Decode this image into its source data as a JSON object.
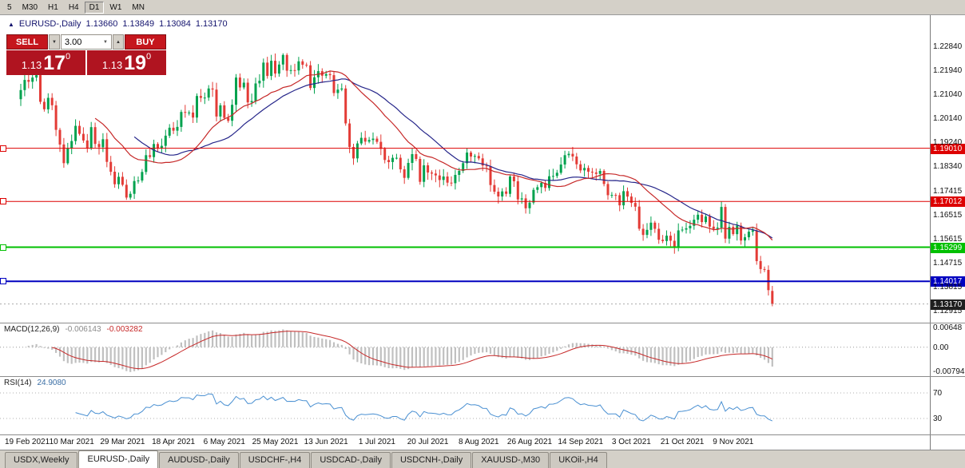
{
  "toolbar": {
    "timeframes": [
      {
        "label": "5",
        "active": false
      },
      {
        "label": "M30",
        "active": false
      },
      {
        "label": "H1",
        "active": false
      },
      {
        "label": "H4",
        "active": false
      },
      {
        "label": "D1",
        "active": true
      },
      {
        "label": "W1",
        "active": false
      },
      {
        "label": "MN",
        "active": false
      }
    ]
  },
  "icons": {
    "arrow_up": "▲",
    "dropdown": "▼",
    "spinner_up": "▲",
    "spinner_down": "▼"
  },
  "title": {
    "symbol": "EURUSD-,Daily",
    "open": "1.13660",
    "high": "1.13849",
    "low": "1.13084",
    "close": "1.13170"
  },
  "trade": {
    "sell_label": "SELL",
    "buy_label": "BUY",
    "volume": "3.00",
    "sell_price": {
      "big": "1.13",
      "pips": "17",
      "pt": "0"
    },
    "buy_price": {
      "big": "1.13",
      "pips": "19",
      "pt": "0"
    }
  },
  "price_axis": [
    "1.22840",
    "1.21940",
    "1.21040",
    "1.20140",
    "1.19240",
    "1.18340",
    "1.17415",
    "1.16515",
    "1.15615",
    "1.14715",
    "1.13815",
    "1.12915"
  ],
  "levels": [
    {
      "label": "1.19010",
      "value": 1.1901,
      "color": "#dd0000",
      "width": 1
    },
    {
      "label": "1.17012",
      "value": 1.17012,
      "color": "#dd0000",
      "width": 1
    },
    {
      "label": "1.15299",
      "value": 1.15299,
      "color": "#00c000",
      "width": 2
    },
    {
      "label": "1.14017",
      "value": 1.14017,
      "color": "#0000c0",
      "width": 2
    }
  ],
  "current_price": {
    "label": "1.13170",
    "value": 1.1317,
    "bg": "#1f1f1f"
  },
  "macd": {
    "name": "MACD(12,26,9)",
    "main_value": "-0.006143",
    "signal_value": "-0.003282",
    "axis_labels": [
      {
        "label": "0.00648",
        "value": 0.00648
      },
      {
        "label": "0.00",
        "value": 0
      },
      {
        "label": "-0.00794",
        "value": -0.00794
      }
    ]
  },
  "rsi": {
    "name": "RSI(14)",
    "value": "24.9080",
    "levels": [
      {
        "label": "70",
        "value": 70
      },
      {
        "label": "30",
        "value": 30
      }
    ]
  },
  "dates": [
    "19 Feb 2021",
    "10 Mar 2021",
    "29 Mar 2021",
    "18 Apr 2021",
    "6 May 2021",
    "25 May 2021",
    "13 Jun 2021",
    "1 Jul 2021",
    "20 Jul 2021",
    "8 Aug 2021",
    "26 Aug 2021",
    "14 Sep 2021",
    "3 Oct 2021",
    "21 Oct 2021",
    "9 Nov 2021"
  ],
  "tabs": [
    {
      "label": "USDX,Weekly",
      "active": false
    },
    {
      "label": "EURUSD-,Daily",
      "active": true
    },
    {
      "label": "AUDUSD-,Daily",
      "active": false
    },
    {
      "label": "USDCHF-,H4",
      "active": false
    },
    {
      "label": "USDCAD-,Daily",
      "active": false
    },
    {
      "label": "USDCNH-,Daily",
      "active": false
    },
    {
      "label": "XAUUSD-,M30",
      "active": false
    },
    {
      "label": "UKOil-,H4",
      "active": false
    }
  ],
  "colors": {
    "candle_up": "#00a24e",
    "candle_down": "#e33b36",
    "ma_fast": "#c62828",
    "ma_slow": "#26268a",
    "macd_hist": "#c0c0c0",
    "macd_signal": "#c62828",
    "rsi_line": "#4a90d2",
    "trade_button": "#c5161d",
    "trade_price_bg": "#b01420"
  },
  "chart_data": {
    "type": "candlestick",
    "symbol": "EURUSD-",
    "timeframe": "Daily",
    "y_range": [
      1.1247,
      1.24
    ],
    "first_open": 1.2085,
    "last_candle": {
      "open": 1.1366,
      "high": 1.13849,
      "low": 1.13084,
      "close": 1.1317
    },
    "ma_fast_period": 20,
    "ma_slow_period": 30,
    "macd_params": [
      12,
      26,
      9
    ],
    "rsi_period": 14,
    "closes": [
      1.2119,
      1.2157,
      1.215,
      1.2166,
      1.2175,
      1.2075,
      1.2047,
      1.209,
      1.2062,
      1.197,
      1.1915,
      1.1845,
      1.19,
      1.1928,
      1.1985,
      1.1955,
      1.193,
      1.1901,
      1.198,
      1.1917,
      1.1905,
      1.1935,
      1.185,
      1.1813,
      1.1766,
      1.1794,
      1.1764,
      1.1716,
      1.173,
      1.1778,
      1.178,
      1.1812,
      1.1875,
      1.1868,
      1.1917,
      1.19,
      1.191,
      1.1948,
      1.1978,
      1.1967,
      1.1981,
      1.2037,
      1.2034,
      1.2035,
      1.2016,
      1.2097,
      1.209,
      1.2091,
      1.2125,
      1.2121,
      1.202,
      1.2062,
      1.2015,
      1.2004,
      1.2064,
      1.2166,
      1.2129,
      1.2147,
      1.2073,
      1.2078,
      1.2144,
      1.2154,
      1.2222,
      1.2172,
      1.2229,
      1.2181,
      1.2215,
      1.2251,
      1.2192,
      1.2194,
      1.2193,
      1.2227,
      1.2214,
      1.2212,
      1.2127,
      1.2167,
      1.219,
      1.2173,
      1.2179,
      1.2175,
      1.2108,
      1.2121,
      1.2125,
      1.1994,
      1.1906,
      1.1863,
      1.1919,
      1.194,
      1.1926,
      1.1932,
      1.1937,
      1.1925,
      1.1899,
      1.1857,
      1.1849,
      1.1865,
      1.1865,
      1.1822,
      1.179,
      1.1846,
      1.1879,
      1.1861,
      1.1775,
      1.1837,
      1.181,
      1.1806,
      1.1799,
      1.1782,
      1.1795,
      1.1772,
      1.177,
      1.1801,
      1.1816,
      1.1845,
      1.1885,
      1.187,
      1.1872,
      1.1863,
      1.1836,
      1.1834,
      1.1763,
      1.1738,
      1.172,
      1.1739,
      1.173,
      1.1795,
      1.1777,
      1.1709,
      1.1713,
      1.1676,
      1.1697,
      1.1745,
      1.1755,
      1.1771,
      1.1752,
      1.1796,
      1.1797,
      1.1809,
      1.184,
      1.1875,
      1.188,
      1.187,
      1.1841,
      1.1818,
      1.1827,
      1.1813,
      1.181,
      1.1805,
      1.1816,
      1.1767,
      1.1725,
      1.1726,
      1.1725,
      1.1687,
      1.174,
      1.172,
      1.1696,
      1.1682,
      1.1599,
      1.1576,
      1.1595,
      1.1622,
      1.1599,
      1.1558,
      1.1553,
      1.1573,
      1.1554,
      1.153,
      1.1593,
      1.1596,
      1.1601,
      1.161,
      1.1633,
      1.1652,
      1.1624,
      1.1645,
      1.1607,
      1.1599,
      1.1603,
      1.1681,
      1.1562,
      1.1606,
      1.1579,
      1.1611,
      1.1555,
      1.1567,
      1.1588,
      1.1593,
      1.1478,
      1.1448,
      1.1445,
      1.1369,
      1.1317
    ]
  }
}
